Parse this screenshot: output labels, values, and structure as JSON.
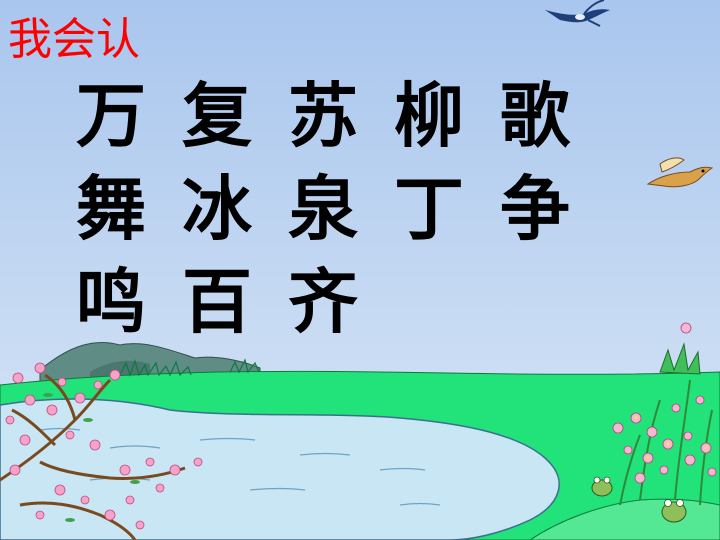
{
  "slide": {
    "title": "我会认",
    "rows": [
      [
        "万",
        "复",
        "苏",
        "柳",
        "歌"
      ],
      [
        "舞",
        "冰",
        "泉",
        "丁",
        "争"
      ],
      [
        "鸣",
        "百",
        "齐"
      ]
    ]
  },
  "colors": {
    "title": "#ff0000",
    "characters": "#000000",
    "sky_top": "#aecbef",
    "sky_bottom": "#d9e7f6",
    "grass": "#22e27a",
    "water": "#c9e6f4",
    "mountain": "#5f8c84"
  },
  "icons": [
    "swallow-icon",
    "sparrow-icon",
    "blossom-branch-icon",
    "flower-bush-icon",
    "frog-icon"
  ]
}
